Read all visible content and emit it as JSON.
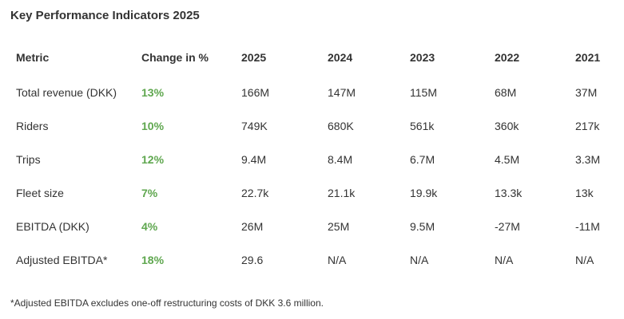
{
  "title": "Key Performance Indicators 2025",
  "footnote": "*Adjusted EBITDA excludes one-off restructuring costs of DKK 3.6 million.",
  "colors": {
    "accent_positive_change": "#5fa74f",
    "text": "#333333",
    "background": "#ffffff"
  },
  "chart_data": {
    "type": "table",
    "title": "Key Performance Indicators 2025",
    "columns": [
      "Metric",
      "Change in %",
      "2025",
      "2024",
      "2023",
      "2022",
      "2021"
    ],
    "rows": [
      [
        "Total revenue (DKK)",
        "13%",
        "166M",
        "147M",
        "115M",
        "68M",
        "37M"
      ],
      [
        "Riders",
        "10%",
        "749K",
        "680K",
        "561k",
        "360k",
        "217k"
      ],
      [
        "Trips",
        "12%",
        "9.4M",
        "8.4M",
        "6.7M",
        "4.5M",
        "3.3M"
      ],
      [
        "Fleet size",
        "7%",
        "22.7k",
        "21.1k",
        "19.9k",
        "13.3k",
        "13k"
      ],
      [
        "EBITDA (DKK)",
        "4%",
        "26M",
        "25M",
        "9.5M",
        "-27M",
        "-11M"
      ],
      [
        "Adjusted EBITDA*",
        "18%",
        "29.6",
        "N/A",
        "N/A",
        "N/A",
        "N/A"
      ]
    ],
    "footnote": "*Adjusted EBITDA excludes one-off restructuring costs of DKK 3.6 million."
  }
}
